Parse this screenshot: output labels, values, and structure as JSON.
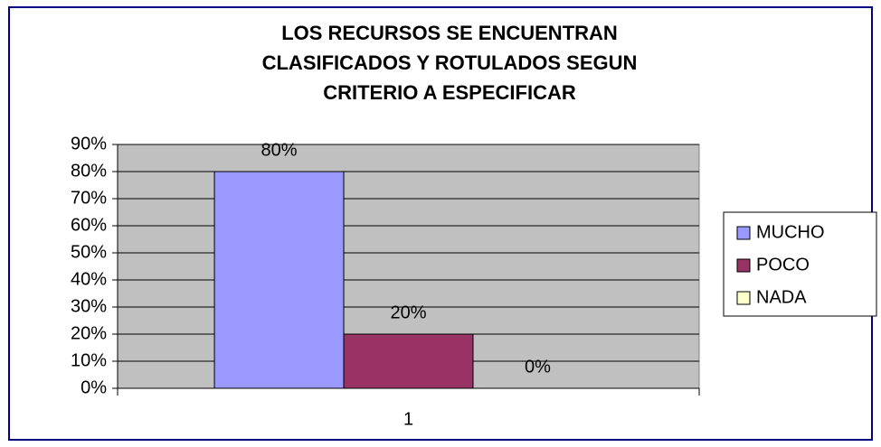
{
  "chart_data": {
    "type": "bar",
    "title": [
      "LOS RECURSOS SE ENCUENTRAN",
      "CLASIFICADOS Y ROTULADOS SEGUN",
      "CRITERIO A ESPECIFICAR"
    ],
    "categories": [
      "1"
    ],
    "series": [
      {
        "name": "MUCHO",
        "color": "#9999ff",
        "values": [
          80
        ],
        "value_labels": [
          "80%"
        ]
      },
      {
        "name": "POCO",
        "color": "#993366",
        "values": [
          20
        ],
        "value_labels": [
          "20%"
        ]
      },
      {
        "name": "NADA",
        "color": "#ffffcc",
        "values": [
          0
        ],
        "value_labels": [
          "0%"
        ]
      }
    ],
    "ylim": [
      0,
      90
    ],
    "yticks": [
      {
        "value": 0,
        "label": "0%"
      },
      {
        "value": 10,
        "label": "10%"
      },
      {
        "value": 20,
        "label": "20%"
      },
      {
        "value": 30,
        "label": "30%"
      },
      {
        "value": 40,
        "label": "40%"
      },
      {
        "value": 50,
        "label": "50%"
      },
      {
        "value": 60,
        "label": "60%"
      },
      {
        "value": 70,
        "label": "70%"
      },
      {
        "value": 80,
        "label": "80%"
      },
      {
        "value": 90,
        "label": "90%"
      }
    ],
    "grid": true,
    "legend": "right"
  }
}
